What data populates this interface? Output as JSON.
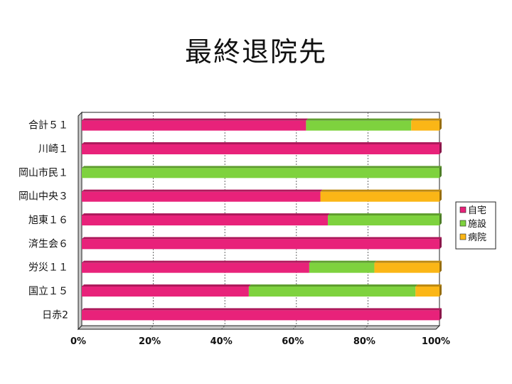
{
  "title": "最終退院先",
  "colors": {
    "自宅": "#e8227a",
    "施設": "#7ed23e",
    "病院": "#fbb616"
  },
  "chart_data": {
    "type": "bar",
    "orientation": "horizontal",
    "stacked": "percent",
    "categories": [
      "合計５１",
      "川崎１",
      "岡山市民１",
      "岡山中央３",
      "旭東１６",
      "済生会６",
      "労災１１",
      "国立１５",
      "日赤2"
    ],
    "series": [
      {
        "name": "自宅",
        "values": [
          62.7,
          100,
          0,
          66.7,
          68.8,
          100,
          63.6,
          46.7,
          100
        ]
      },
      {
        "name": "施設",
        "values": [
          29.4,
          0,
          100,
          0,
          31.2,
          0,
          18.2,
          46.6,
          0
        ]
      },
      {
        "name": "病院",
        "values": [
          7.9,
          0,
          0,
          33.3,
          0,
          0,
          18.2,
          6.7,
          0
        ]
      }
    ],
    "x_ticks": [
      "0%",
      "20%",
      "40%",
      "60%",
      "80%",
      "100%"
    ],
    "xlim": [
      0,
      100
    ],
    "grid": true,
    "legend_position": "right"
  }
}
